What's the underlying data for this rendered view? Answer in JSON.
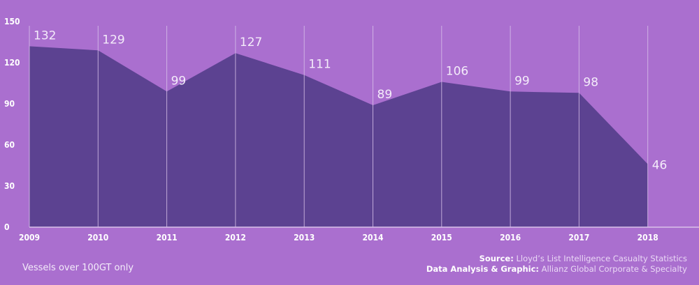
{
  "chart_data": {
    "type": "area",
    "categories": [
      "2009",
      "2010",
      "2011",
      "2012",
      "2013",
      "2014",
      "2015",
      "2016",
      "2017",
      "2018"
    ],
    "values": [
      132,
      129,
      99,
      127,
      111,
      89,
      106,
      99,
      98,
      46
    ],
    "ylim": [
      0,
      150
    ],
    "yticks": [
      0,
      30,
      60,
      90,
      120,
      150
    ],
    "grid": "vertical",
    "colors": {
      "background": "#aa6fcf",
      "area": "#5c4291",
      "grid": "#d9c2ea",
      "text": "#ffffff"
    }
  },
  "footer": {
    "note": "Vessels over 100GT only",
    "source_label": "Source:",
    "source_text": " Lloyd’s List Intelligence Casualty Statistics",
    "analysis_label": "Data Analysis & Graphic:",
    "analysis_text": " Allianz Global Corporate & Specialty"
  }
}
